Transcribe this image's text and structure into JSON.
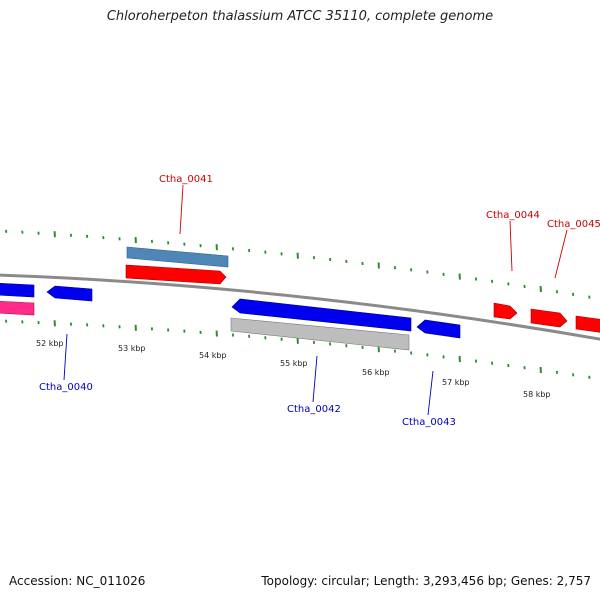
{
  "title": "Chloroherpeton thalassium ATCC 35110, complete genome",
  "footer": {
    "accession": "Accession: NC_011026",
    "summary": "Topology: circular; Length: 3,293,456 bp; Genes: 2,757"
  },
  "colors": {
    "backbone": "#8a8a8a",
    "ticks": "#2e8b2e",
    "forward_gene": "#ff0000",
    "reverse_gene": "#0000ee",
    "forward_label": "#cc0000",
    "reverse_label": "#0000bb",
    "steelblue_gene": "#4f86b8",
    "grey_gene": "#b8b8b8",
    "pink_gene": "#ff2a8a"
  },
  "ruler": {
    "labels": [
      "52 kbp",
      "53 kbp",
      "54 kbp",
      "55 kbp",
      "56 kbp",
      "57 kbp",
      "58 kbp"
    ]
  },
  "genes": [
    {
      "label": "Ctha_0041",
      "strand": "forward"
    },
    {
      "label": "Ctha_0044",
      "strand": "forward"
    },
    {
      "label": "Ctha_0045",
      "strand": "forward"
    },
    {
      "label": "Ctha_0040",
      "strand": "reverse"
    },
    {
      "label": "Ctha_0042",
      "strand": "reverse"
    },
    {
      "label": "Ctha_0043",
      "strand": "reverse"
    }
  ]
}
